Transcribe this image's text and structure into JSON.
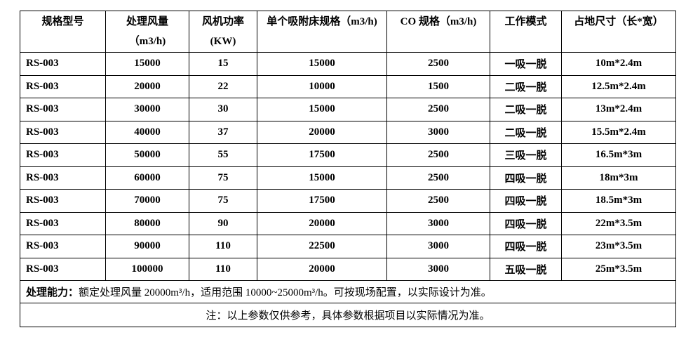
{
  "headers": [
    {
      "l1": "规格型号",
      "l2": ""
    },
    {
      "l1": "处理风量",
      "l2": "（m3/h)"
    },
    {
      "l1": "风机功率",
      "l2": "(KW)"
    },
    {
      "l1": "单个吸附床规格（m3/h)",
      "l2": ""
    },
    {
      "l1": "CO 规格（m3/h)",
      "l2": ""
    },
    {
      "l1": "工作模式",
      "l2": ""
    },
    {
      "l1": "占地尺寸（长*宽）",
      "l2": ""
    }
  ],
  "rows": [
    [
      "RS-003",
      "15000",
      "15",
      "15000",
      "2500",
      "一吸一脱",
      "10m*2.4m"
    ],
    [
      "RS-003",
      "20000",
      "22",
      "10000",
      "1500",
      "二吸一脱",
      "12.5m*2.4m"
    ],
    [
      "RS-003",
      "30000",
      "30",
      "15000",
      "2500",
      "二吸一脱",
      "13m*2.4m"
    ],
    [
      "RS-003",
      "40000",
      "37",
      "20000",
      "3000",
      "二吸一脱",
      "15.5m*2.4m"
    ],
    [
      "RS-003",
      "50000",
      "55",
      "17500",
      "2500",
      "三吸一脱",
      "16.5m*3m"
    ],
    [
      "RS-003",
      "60000",
      "75",
      "15000",
      "2500",
      "四吸一脱",
      "18m*3m"
    ],
    [
      "RS-003",
      "70000",
      "75",
      "17500",
      "2500",
      "四吸一脱",
      "18.5m*3m"
    ],
    [
      "RS-003",
      "80000",
      "90",
      "20000",
      "3000",
      "四吸一脱",
      "22m*3.5m"
    ],
    [
      "RS-003",
      "90000",
      "110",
      "22500",
      "3000",
      "四吸一脱",
      "23m*3.5m"
    ],
    [
      "RS-003",
      "100000",
      "110",
      "20000",
      "3000",
      "五吸一脱",
      "25m*3.5m"
    ]
  ],
  "capacity": {
    "label": "处理能力：",
    "text": "额定处理风量 20000m³/h，适用范围 10000~25000m³/h。可按现场配置，以实际设计为准。"
  },
  "note": "注：以上参数仅供参考，具体参数根据项目以实际情况为准。"
}
